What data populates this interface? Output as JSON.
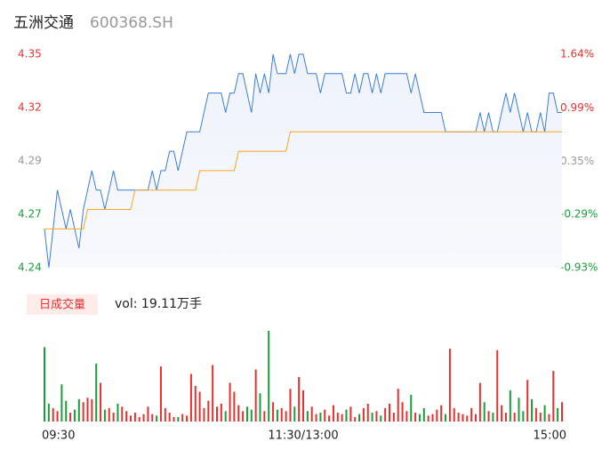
{
  "chart_data": {
    "type": "line",
    "title": "五洲交通",
    "subtitle": "600368.SH",
    "categories": [
      "09:30",
      null,
      null,
      null,
      null,
      null,
      null,
      null,
      null,
      null,
      null,
      null,
      null,
      null,
      null,
      null,
      null,
      null,
      null,
      null,
      null,
      null,
      null,
      null,
      null,
      null,
      null,
      null,
      null,
      null,
      null,
      null,
      null,
      null,
      null,
      null,
      null,
      null,
      null,
      null,
      null,
      null,
      null,
      null,
      null,
      null,
      null,
      null,
      null,
      null,
      null,
      null,
      null,
      null,
      null,
      null,
      null,
      null,
      null,
      null,
      "11:30/13:00",
      null,
      null,
      null,
      null,
      null,
      null,
      null,
      null,
      null,
      null,
      null,
      null,
      null,
      null,
      null,
      null,
      null,
      null,
      null,
      null,
      null,
      null,
      null,
      null,
      null,
      null,
      null,
      null,
      null,
      null,
      null,
      null,
      null,
      null,
      null,
      null,
      null,
      null,
      null,
      null,
      null,
      null,
      null,
      null,
      null,
      null,
      null,
      null,
      null,
      null,
      null,
      null,
      null,
      null,
      null,
      null,
      null,
      null,
      null,
      "15:00"
    ],
    "series": [
      {
        "color": "#3b7ddd",
        "values": [
          4.26,
          4.24,
          4.26,
          4.28,
          4.27,
          4.26,
          4.27,
          4.26,
          4.25,
          4.27,
          4.28,
          4.29,
          4.28,
          4.28,
          4.27,
          4.28,
          4.29,
          4.28,
          4.28,
          4.28,
          4.28,
          4.28,
          4.28,
          4.28,
          4.28,
          4.29,
          4.28,
          4.29,
          4.29,
          4.3,
          4.3,
          4.29,
          4.3,
          4.31,
          4.31,
          4.31,
          4.31,
          4.32,
          4.33,
          4.33,
          4.33,
          4.33,
          4.32,
          4.33,
          4.33,
          4.34,
          4.34,
          4.33,
          4.32,
          4.34,
          4.33,
          4.34,
          4.33,
          4.35,
          4.34,
          4.34,
          4.34,
          4.35,
          4.34,
          4.35,
          4.35,
          4.34,
          4.34,
          4.34,
          4.33,
          4.34,
          4.34,
          4.34,
          4.34,
          4.34,
          4.33,
          4.33,
          4.34,
          4.33,
          4.34,
          4.34,
          4.33,
          4.34,
          4.33,
          4.34,
          4.34,
          4.34,
          4.34,
          4.34,
          4.34,
          4.33,
          4.34,
          4.33,
          4.32,
          4.32,
          4.32,
          4.32,
          4.32,
          4.31,
          4.31,
          4.31,
          4.31,
          4.31,
          4.31,
          4.31,
          4.31,
          4.32,
          4.31,
          4.32,
          4.31,
          4.31,
          4.32,
          4.33,
          4.32,
          4.33,
          4.32,
          4.31,
          4.32,
          4.31,
          4.31,
          4.32,
          4.31,
          4.33,
          4.33,
          4.32,
          4.32
        ]
      },
      {
        "color": "#f5a623",
        "values": [
          4.26,
          4.26,
          4.26,
          4.26,
          4.26,
          4.26,
          4.26,
          4.26,
          4.26,
          4.26,
          4.27,
          4.27,
          4.27,
          4.27,
          4.27,
          4.27,
          4.27,
          4.27,
          4.27,
          4.27,
          4.27,
          4.28,
          4.28,
          4.28,
          4.28,
          4.28,
          4.28,
          4.28,
          4.28,
          4.28,
          4.28,
          4.28,
          4.28,
          4.28,
          4.28,
          4.28,
          4.29,
          4.29,
          4.29,
          4.29,
          4.29,
          4.29,
          4.29,
          4.29,
          4.29,
          4.3,
          4.3,
          4.3,
          4.3,
          4.3,
          4.3,
          4.3,
          4.3,
          4.3,
          4.3,
          4.3,
          4.3,
          4.31,
          4.31,
          4.31,
          4.31,
          4.31,
          4.31,
          4.31,
          4.31,
          4.31,
          4.31,
          4.31,
          4.31,
          4.31,
          4.31,
          4.31,
          4.31,
          4.31,
          4.31,
          4.31,
          4.31,
          4.31,
          4.31,
          4.31,
          4.31,
          4.31,
          4.31,
          4.31,
          4.31,
          4.31,
          4.31,
          4.31,
          4.31,
          4.31,
          4.31,
          4.31,
          4.31,
          4.31,
          4.31,
          4.31,
          4.31,
          4.31,
          4.31,
          4.31,
          4.31,
          4.31,
          4.31,
          4.31,
          4.31,
          4.31,
          4.31,
          4.31,
          4.31,
          4.31,
          4.31,
          4.31,
          4.31,
          4.31,
          4.31,
          4.31,
          4.31,
          4.31,
          4.31,
          4.31,
          4.31
        ]
      }
    ],
    "ylim": [
      4.24,
      4.35
    ],
    "yticks": [
      {
        "value": 4.24,
        "label": "4.24"
      },
      {
        "value": 4.2675,
        "label": "4.27"
      },
      {
        "value": 4.295,
        "label": "4.29"
      },
      {
        "value": 4.3225,
        "label": "4.32"
      },
      {
        "value": 4.35,
        "label": "4.35"
      }
    ],
    "y2lim": [
      -0.93,
      1.64
    ],
    "y2ticks": [
      {
        "value": -0.93,
        "label": "-0.93%"
      },
      {
        "value": -0.29,
        "label": "-0.29%"
      },
      {
        "value": 0.35,
        "label": "0.35%"
      },
      {
        "value": 0.99,
        "label": "0.99%"
      },
      {
        "value": 1.64,
        "label": "1.64%"
      }
    ],
    "up_color": "#e8312f",
    "down_color": "#1a9d3a",
    "flat_color": "#999999",
    "volume_label": "日成交量",
    "volume_text": "vol: 19.11万手",
    "volume": {
      "values": [
        5000,
        1200,
        900,
        700,
        2500,
        1400,
        600,
        800,
        1500,
        1300,
        1600,
        1500,
        3900,
        2600,
        800,
        900,
        600,
        1200,
        1000,
        700,
        400,
        600,
        300,
        500,
        1000,
        500,
        400,
        3700,
        900,
        600,
        300,
        300,
        500,
        400,
        3200,
        2400,
        2000,
        900,
        1400,
        3800,
        1000,
        1200,
        700,
        2600,
        2000,
        1100,
        700,
        1000,
        800,
        3500,
        1900,
        700,
        6100,
        1300,
        800,
        900,
        700,
        2200,
        1000,
        3000,
        2100,
        700,
        1000,
        500,
        600,
        800,
        400,
        1100,
        600,
        500,
        800,
        1000,
        300,
        500,
        900,
        1200,
        600,
        700,
        400,
        900,
        1200,
        600,
        2200,
        1300,
        700,
        1800,
        600,
        500,
        900,
        400,
        500,
        800,
        1100,
        500,
        4900,
        900,
        600,
        500,
        400,
        900,
        500,
        2600,
        1300,
        700,
        600,
        4800,
        1100,
        600,
        2100,
        600,
        1600,
        700,
        2800,
        1500,
        900,
        600,
        1100,
        500,
        3400,
        900,
        1300
      ]
    }
  }
}
